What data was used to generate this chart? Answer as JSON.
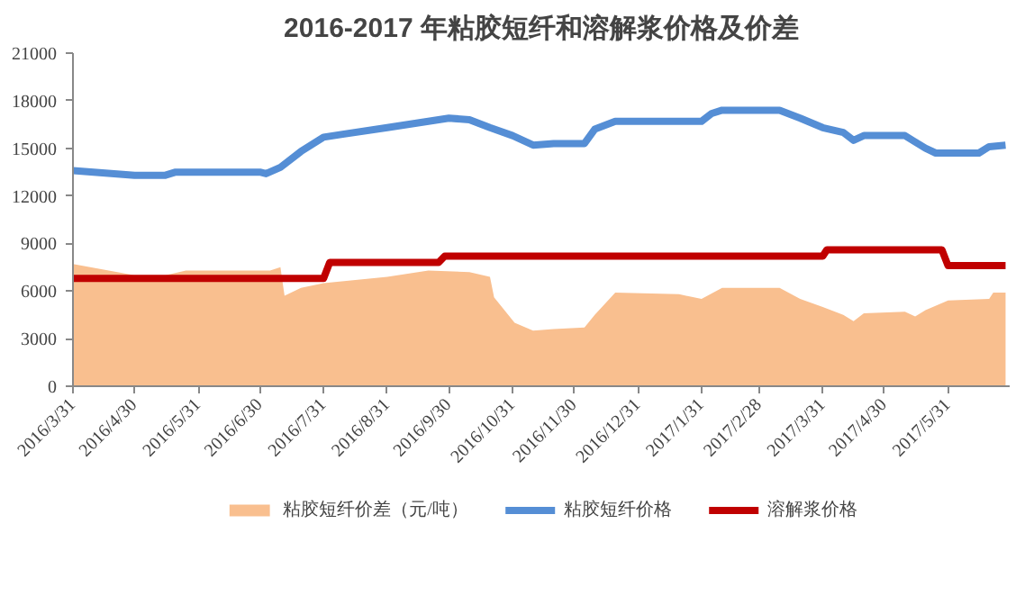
{
  "chart_data": {
    "type": "line",
    "title": "2016-2017 年粘胶短纤和溶解浆价格及价差",
    "xlim": [
      "2016-03-31",
      "2017-06-30"
    ],
    "xticks": [
      {
        "value": "2016-03-31",
        "label": "2016/3/31"
      },
      {
        "value": "2016-04-30",
        "label": "2016/4/30"
      },
      {
        "value": "2016-05-31",
        "label": "2016/5/31"
      },
      {
        "value": "2016-06-30",
        "label": "2016/6/30"
      },
      {
        "value": "2016-07-31",
        "label": "2016/7/31"
      },
      {
        "value": "2016-08-31",
        "label": "2016/8/31"
      },
      {
        "value": "2016-09-30",
        "label": "2016/9/30"
      },
      {
        "value": "2016-10-31",
        "label": "2016/10/31"
      },
      {
        "value": "2016-11-30",
        "label": "2016/11/30"
      },
      {
        "value": "2016-12-31",
        "label": "2016/12/31"
      },
      {
        "value": "2017-01-31",
        "label": "2017/1/31"
      },
      {
        "value": "2017-02-28",
        "label": "2017/2/28"
      },
      {
        "value": "2017-03-31",
        "label": "2017/3/31"
      },
      {
        "value": "2017-04-30",
        "label": "2017/4/30"
      },
      {
        "value": "2017-05-31",
        "label": "2017/5/31"
      }
    ],
    "ylim": [
      0,
      21000
    ],
    "yticks": [
      0,
      3000,
      6000,
      9000,
      12000,
      15000,
      18000,
      21000
    ],
    "grid": false,
    "legend": "bottom",
    "series": [
      {
        "name": "粘胶短纤价差（元/吨）",
        "type": "area",
        "color": "#f9bf8f",
        "x": [
          "2016-03-31",
          "2016-04-30",
          "2016-05-15",
          "2016-05-25",
          "2016-06-30",
          "2016-07-05",
          "2016-07-10",
          "2016-07-12",
          "2016-07-20",
          "2016-07-31",
          "2016-08-31",
          "2016-09-20",
          "2016-10-10",
          "2016-10-20",
          "2016-10-22",
          "2016-11-01",
          "2016-11-10",
          "2016-11-20",
          "2016-12-05",
          "2016-12-10",
          "2016-12-20",
          "2017-01-20",
          "2017-01-31",
          "2017-02-10",
          "2017-03-10",
          "2017-03-20",
          "2017-03-31",
          "2017-04-10",
          "2017-04-15",
          "2017-04-20",
          "2017-05-10",
          "2017-05-15",
          "2017-05-20",
          "2017-05-31",
          "2017-06-20",
          "2017-06-22",
          "2017-06-28"
        ],
        "values": [
          7700,
          7000,
          7000,
          7300,
          7300,
          7300,
          7500,
          5700,
          6200,
          6500,
          6900,
          7300,
          7200,
          6900,
          5600,
          4000,
          3500,
          3600,
          3700,
          4500,
          5900,
          5800,
          5500,
          6200,
          6200,
          5500,
          5000,
          4500,
          4100,
          4600,
          4700,
          4400,
          4800,
          5400,
          5500,
          5900,
          5900
        ]
      },
      {
        "name": "粘胶短纤价格",
        "color": "#558ed5",
        "x": [
          "2016-03-31",
          "2016-04-30",
          "2016-05-15",
          "2016-05-20",
          "2016-06-30",
          "2016-07-03",
          "2016-07-10",
          "2016-07-20",
          "2016-07-31",
          "2016-08-10",
          "2016-08-31",
          "2016-09-15",
          "2016-09-30",
          "2016-10-10",
          "2016-10-20",
          "2016-10-31",
          "2016-11-10",
          "2016-11-20",
          "2016-12-05",
          "2016-12-10",
          "2016-12-20",
          "2017-01-31",
          "2017-02-05",
          "2017-02-10",
          "2017-03-10",
          "2017-03-20",
          "2017-03-31",
          "2017-04-10",
          "2017-04-15",
          "2017-04-20",
          "2017-05-10",
          "2017-05-20",
          "2017-05-25",
          "2017-06-15",
          "2017-06-20",
          "2017-06-28"
        ],
        "values": [
          13600,
          13300,
          13300,
          13500,
          13500,
          13400,
          13800,
          14800,
          15700,
          15900,
          16300,
          16600,
          16900,
          16800,
          16300,
          15800,
          15200,
          15300,
          15300,
          16200,
          16700,
          16700,
          17200,
          17400,
          17400,
          16900,
          16300,
          16000,
          15500,
          15800,
          15800,
          15000,
          14700,
          14700,
          15100,
          15200
        ]
      },
      {
        "name": "溶解浆价格",
        "color": "#c00000",
        "x": [
          "2016-03-31",
          "2016-07-31",
          "2016-08-03",
          "2016-09-25",
          "2016-09-28",
          "2017-03-31",
          "2017-04-02",
          "2017-05-28",
          "2017-05-31",
          "2017-06-28"
        ],
        "values": [
          6800,
          6800,
          7800,
          7800,
          8200,
          8200,
          8600,
          8600,
          7600,
          7600
        ]
      }
    ]
  }
}
